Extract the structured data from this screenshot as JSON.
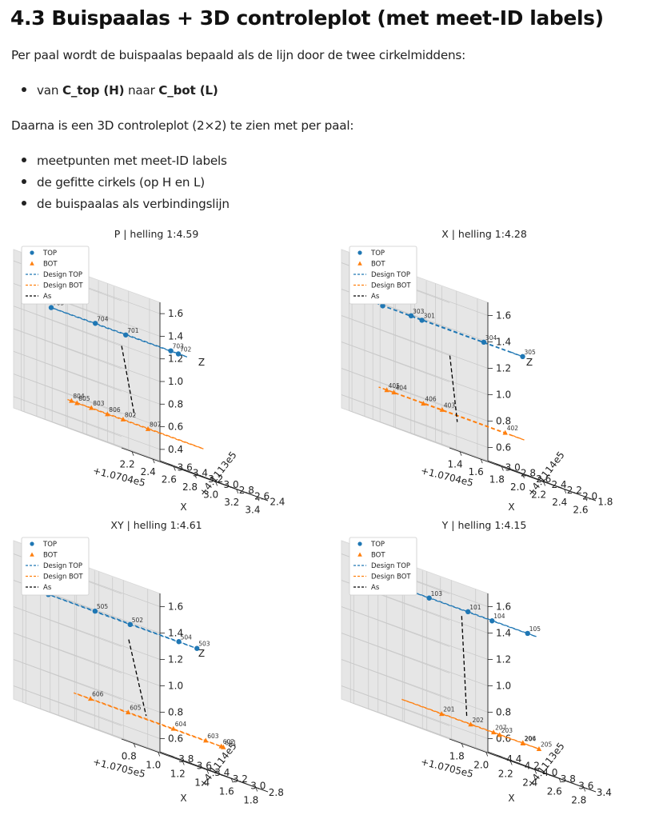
{
  "heading": "4.3 Buispaalas + 3D controleplot (met meet-ID labels)",
  "intro": "Per paal wordt de buispaalas bepaald als de lijn door de twee cirkelmiddens:",
  "bullet1": {
    "prefix": "van ",
    "top": "C_top (H)",
    "mid": " naar ",
    "bot": "C_bot (L)"
  },
  "intro2": "Daarna is een 3D controleplot (2×2) te zien met per paal:",
  "list": [
    "meetpunten met meet-ID labels",
    "de gefitte cirkels (op H en L)",
    "de buispaalas als verbindingslijn"
  ],
  "chart_data": [
    {
      "type": "scatter",
      "title": "P | helling 1:4.59",
      "xlabel": "X",
      "ylabel": "",
      "zlabel": "Z",
      "x_offset": "+1.0704e5",
      "y_offset": "+4.1113e5",
      "x_ticks": [
        "2.2",
        "2.4",
        "2.6",
        "2.8",
        "3.0",
        "3.2",
        "3.4"
      ],
      "y_ticks": [
        "2.4",
        "2.6",
        "2.8",
        "3.0",
        "3.2",
        "3.4",
        "3.6"
      ],
      "z_ticks": [
        "0.4",
        "0.6",
        "0.8",
        "1.0",
        "1.2",
        "1.4",
        "1.6"
      ],
      "legend": [
        "TOP",
        "BOT",
        "Design TOP",
        "Design BOT",
        "As"
      ],
      "legend_position": "top-left",
      "top_ids": [
        "701",
        "702",
        "703",
        "704",
        "705"
      ],
      "bot_ids": [
        "802",
        "803",
        "804",
        "805",
        "806",
        "807"
      ],
      "colors": {
        "top": "#1f77b4",
        "bot": "#ff7f0e",
        "axis": "#000000"
      }
    },
    {
      "type": "scatter",
      "title": "X | helling 1:4.28",
      "xlabel": "X",
      "ylabel": "",
      "zlabel": "Z",
      "x_offset": "+1.0704e5",
      "y_offset": "+4.1114e5",
      "x_ticks": [
        "1.4",
        "1.6",
        "1.8",
        "2.0",
        "2.2",
        "2.4",
        "2.6"
      ],
      "y_ticks": [
        "1.8",
        "2.0",
        "2.2",
        "2.4",
        "2.6",
        "2.8",
        "3.0"
      ],
      "z_ticks": [
        "0.6",
        "0.8",
        "1.0",
        "1.2",
        "1.4",
        "1.6"
      ],
      "legend": [
        "TOP",
        "BOT",
        "Design TOP",
        "Design BOT",
        "As"
      ],
      "legend_position": "top-left",
      "top_ids": [
        "301",
        "302",
        "303",
        "304",
        "305"
      ],
      "bot_ids": [
        "402",
        "403",
        "404",
        "405",
        "406"
      ],
      "colors": {
        "top": "#1f77b4",
        "bot": "#ff7f0e",
        "axis": "#000000"
      }
    },
    {
      "type": "scatter",
      "title": "XY | helling 1:4.61",
      "xlabel": "X",
      "ylabel": "",
      "zlabel": "Z",
      "x_offset": "+1.0705e5",
      "y_offset": "+4.1114e5",
      "x_ticks": [
        "0.8",
        "1.0",
        "1.2",
        "1.4",
        "1.6",
        "1.8"
      ],
      "y_ticks": [
        "2.8",
        "3.0",
        "3.2",
        "3.4",
        "3.6",
        "3.8"
      ],
      "z_ticks": [
        "0.6",
        "0.8",
        "1.0",
        "1.2",
        "1.4",
        "1.6"
      ],
      "legend": [
        "TOP",
        "BOT",
        "Design TOP",
        "Design BOT",
        "As"
      ],
      "legend_position": "top-left",
      "top_ids": [
        "501",
        "502",
        "503",
        "504",
        "505"
      ],
      "bot_ids": [
        "601",
        "602",
        "603",
        "604",
        "605",
        "606"
      ],
      "colors": {
        "top": "#1f77b4",
        "bot": "#ff7f0e",
        "axis": "#000000"
      }
    },
    {
      "type": "scatter",
      "title": "Y | helling 1:4.15",
      "xlabel": "X",
      "ylabel": "",
      "zlabel": "",
      "x_offset": "+1.0705e5",
      "y_offset": "+4.1113e5",
      "x_ticks": [
        "1.8",
        "2.0",
        "2.2",
        "2.4",
        "2.6",
        "2.8"
      ],
      "y_ticks": [
        "3.4",
        "3.6",
        "3.8",
        "4.0",
        "4.2",
        "4.4"
      ],
      "z_ticks": [
        "0.6",
        "0.8",
        "1.0",
        "1.2",
        "1.4",
        "1.6"
      ],
      "legend": [
        "TOP",
        "BOT",
        "Design TOP",
        "Design BOT",
        "As"
      ],
      "legend_position": "top-left",
      "top_ids": [
        "101",
        "102",
        "103",
        "104",
        "105"
      ],
      "bot_ids": [
        "201",
        "202",
        "203",
        "204",
        "205",
        "206",
        "207"
      ],
      "colors": {
        "top": "#1f77b4",
        "bot": "#ff7f0e",
        "axis": "#000000"
      }
    }
  ]
}
